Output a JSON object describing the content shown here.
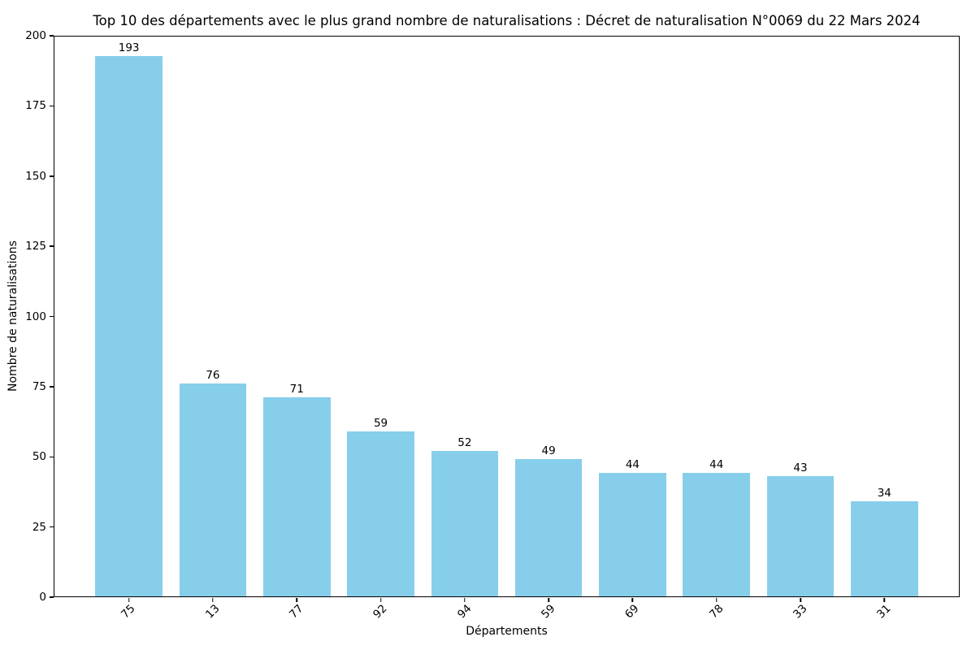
{
  "chart_data": {
    "type": "bar",
    "title": "Top 10 des départements avec le plus grand nombre de naturalisations : Décret de naturalisation N°0069 du 22 Mars 2024",
    "xlabel": "Départements",
    "ylabel": "Nombre de naturalisations",
    "categories": [
      "75",
      "13",
      "77",
      "92",
      "94",
      "59",
      "69",
      "78",
      "33",
      "31"
    ],
    "values": [
      193,
      76,
      71,
      59,
      52,
      49,
      44,
      44,
      43,
      34
    ],
    "yticks": [
      0,
      25,
      50,
      75,
      100,
      125,
      150,
      175,
      200
    ],
    "ylim": [
      0,
      200
    ],
    "bar_color": "#87CEEB",
    "axis_color": "#000000",
    "background_color": "#ffffff",
    "grid": false,
    "legend": false,
    "bar_labels_position": "above",
    "xtick_rotation_deg": 45
  }
}
